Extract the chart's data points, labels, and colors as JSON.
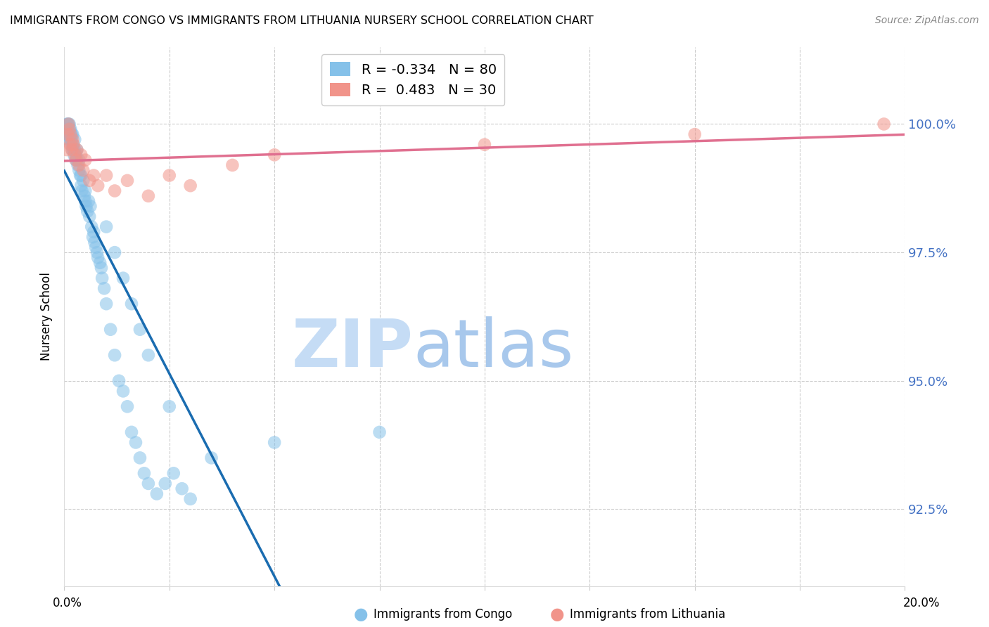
{
  "title": "IMMIGRANTS FROM CONGO VS IMMIGRANTS FROM LITHUANIA NURSERY SCHOOL CORRELATION CHART",
  "source": "Source: ZipAtlas.com",
  "ylabel": "Nursery School",
  "yticks": [
    92.5,
    95.0,
    97.5,
    100.0
  ],
  "ytick_labels": [
    "92.5%",
    "95.0%",
    "97.5%",
    "100.0%"
  ],
  "xlim": [
    0.0,
    20.0
  ],
  "ylim": [
    91.0,
    101.5
  ],
  "congo_color": "#85C1E9",
  "lithuania_color": "#F1948A",
  "congo_line_color": "#1A6CB0",
  "lithuania_line_color": "#E07090",
  "dashed_color": "#BBBBBB",
  "right_yaxis_color": "#4472C4",
  "congo_R": -0.334,
  "congo_N": 80,
  "lithuania_R": 0.483,
  "lithuania_N": 30,
  "legend_label_congo": "Immigrants from Congo",
  "legend_label_lithuania": "Immigrants from Lithuania",
  "watermark_zip": "ZIP",
  "watermark_atlas": "atlas",
  "watermark_color_zip": "#C5DCF5",
  "watermark_color_atlas": "#A8C8EC",
  "grid_color": "#CCCCCC",
  "congo_x": [
    0.05,
    0.06,
    0.07,
    0.08,
    0.09,
    0.1,
    0.1,
    0.11,
    0.12,
    0.13,
    0.14,
    0.15,
    0.15,
    0.16,
    0.17,
    0.18,
    0.19,
    0.2,
    0.2,
    0.22,
    0.23,
    0.25,
    0.25,
    0.27,
    0.28,
    0.3,
    0.3,
    0.32,
    0.35,
    0.35,
    0.38,
    0.4,
    0.4,
    0.42,
    0.45,
    0.48,
    0.5,
    0.5,
    0.52,
    0.55,
    0.58,
    0.6,
    0.62,
    0.65,
    0.68,
    0.7,
    0.72,
    0.75,
    0.78,
    0.8,
    0.85,
    0.88,
    0.9,
    0.95,
    1.0,
    1.1,
    1.2,
    1.3,
    1.4,
    1.5,
    1.6,
    1.7,
    1.8,
    1.9,
    2.0,
    2.2,
    2.4,
    2.6,
    2.8,
    3.0,
    1.0,
    1.2,
    1.4,
    1.6,
    1.8,
    2.0,
    2.5,
    3.5,
    5.0,
    7.5
  ],
  "congo_y": [
    99.8,
    99.9,
    100.0,
    100.0,
    99.9,
    100.0,
    99.7,
    99.8,
    100.0,
    99.9,
    99.8,
    99.9,
    99.7,
    99.6,
    99.7,
    99.8,
    99.5,
    99.6,
    99.8,
    99.5,
    99.4,
    99.5,
    99.7,
    99.3,
    99.4,
    99.3,
    99.5,
    99.2,
    99.3,
    99.1,
    99.0,
    98.8,
    99.0,
    98.7,
    98.9,
    98.6,
    98.7,
    98.5,
    98.4,
    98.3,
    98.5,
    98.2,
    98.4,
    98.0,
    97.8,
    97.9,
    97.7,
    97.6,
    97.5,
    97.4,
    97.3,
    97.2,
    97.0,
    96.8,
    96.5,
    96.0,
    95.5,
    95.0,
    94.8,
    94.5,
    94.0,
    93.8,
    93.5,
    93.2,
    93.0,
    92.8,
    93.0,
    93.2,
    92.9,
    92.7,
    98.0,
    97.5,
    97.0,
    96.5,
    96.0,
    95.5,
    94.5,
    93.5,
    93.8,
    94.0
  ],
  "lithuania_x": [
    0.05,
    0.08,
    0.1,
    0.12,
    0.14,
    0.15,
    0.18,
    0.2,
    0.22,
    0.25,
    0.28,
    0.3,
    0.35,
    0.4,
    0.45,
    0.5,
    0.6,
    0.7,
    0.8,
    1.0,
    1.2,
    1.5,
    2.0,
    2.5,
    3.0,
    4.0,
    5.0,
    10.0,
    15.0,
    19.5
  ],
  "lithuania_y": [
    99.5,
    99.8,
    100.0,
    99.9,
    99.6,
    99.8,
    99.5,
    99.7,
    99.6,
    99.4,
    99.3,
    99.5,
    99.2,
    99.4,
    99.1,
    99.3,
    98.9,
    99.0,
    98.8,
    99.0,
    98.7,
    98.9,
    98.6,
    99.0,
    98.8,
    99.2,
    99.4,
    99.6,
    99.8,
    100.0
  ]
}
